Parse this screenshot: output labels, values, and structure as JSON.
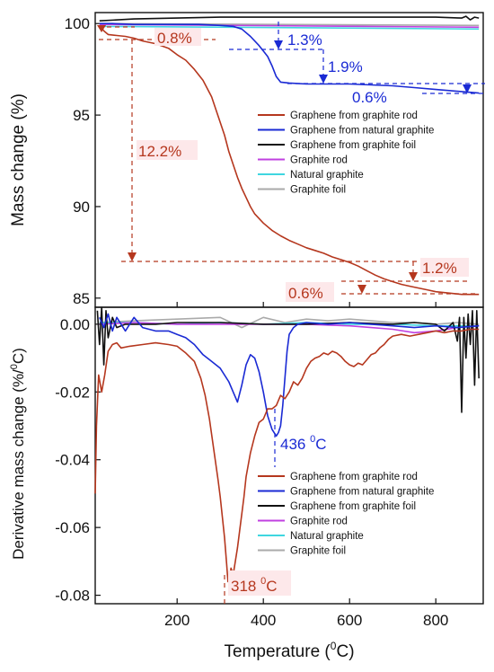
{
  "colors": {
    "graphene_rod": "#b5371e",
    "graphene_natural": "#1a2ad4",
    "graphene_foil": "#111111",
    "graphite_rod": "#c040e0",
    "natural_graphite": "#3fd6e0",
    "graphite_foil": "#aaaaaa",
    "axis": "#111111"
  },
  "chart_data": [
    {
      "type": "line",
      "panel": "top",
      "ylabel": "Mass change (%)",
      "xlim": [
        10,
        910
      ],
      "ylim": [
        84.5,
        100.6
      ],
      "yticks": [
        85,
        90,
        95,
        100
      ],
      "series": [
        {
          "name": "Graphene from graphite rod",
          "color": "#b5371e",
          "x": [
            20,
            30,
            40,
            60,
            80,
            100,
            120,
            150,
            180,
            200,
            220,
            240,
            260,
            280,
            290,
            300,
            310,
            320,
            330,
            340,
            350,
            360,
            370,
            380,
            400,
            420,
            440,
            460,
            480,
            500,
            520,
            540,
            560,
            580,
            600,
            620,
            640,
            660,
            680,
            700,
            720,
            740,
            760,
            780,
            800,
            820,
            840,
            860,
            880,
            900
          ],
          "y": [
            99.9,
            99.6,
            99.4,
            99.35,
            99.3,
            99.2,
            99.05,
            98.9,
            98.65,
            98.3,
            98.0,
            97.5,
            96.9,
            96.0,
            95.3,
            94.6,
            93.9,
            93.0,
            92.3,
            91.6,
            91.0,
            90.5,
            90.0,
            89.6,
            89.1,
            88.7,
            88.4,
            88.15,
            87.95,
            87.75,
            87.6,
            87.45,
            87.25,
            87.1,
            86.95,
            86.75,
            86.5,
            86.25,
            86.05,
            85.9,
            85.75,
            85.65,
            85.55,
            85.45,
            85.35,
            85.3,
            85.25,
            85.2,
            85.2,
            85.2
          ]
        },
        {
          "name": "Graphene from natural graphite",
          "color": "#1a2ad4",
          "x": [
            20,
            50,
            100,
            150,
            200,
            250,
            300,
            330,
            350,
            370,
            390,
            400,
            410,
            420,
            430,
            440,
            460,
            500,
            550,
            600,
            650,
            700,
            750,
            800,
            850,
            900
          ],
          "y": [
            100.0,
            100.0,
            99.95,
            99.95,
            99.95,
            99.95,
            99.9,
            99.85,
            99.7,
            99.3,
            98.8,
            98.5,
            98.2,
            97.7,
            97.1,
            96.8,
            96.75,
            96.7,
            96.7,
            96.7,
            96.65,
            96.6,
            96.5,
            96.4,
            96.3,
            96.2
          ]
        },
        {
          "name": "Graphene from graphite foil",
          "color": "#111111",
          "x": [
            20,
            100,
            200,
            300,
            400,
            500,
            600,
            700,
            800,
            860,
            870,
            880,
            890,
            900
          ],
          "y": [
            100.15,
            100.25,
            100.3,
            100.35,
            100.35,
            100.35,
            100.35,
            100.35,
            100.35,
            100.3,
            100.4,
            100.2,
            100.35,
            100.3
          ]
        },
        {
          "name": "Graphite rod",
          "color": "#c040e0",
          "x": [
            20,
            900
          ],
          "y": [
            99.95,
            99.8
          ]
        },
        {
          "name": "Natural graphite",
          "color": "#3fd6e0",
          "x": [
            20,
            900
          ],
          "y": [
            99.85,
            99.7
          ]
        },
        {
          "name": "Graphite foil",
          "color": "#aaaaaa",
          "x": [
            20,
            900
          ],
          "y": [
            100.0,
            99.9
          ]
        }
      ],
      "annotations": [
        {
          "text": "0.8%",
          "color": "#b5371e"
        },
        {
          "text": "1.3%",
          "color": "#1a2ad4"
        },
        {
          "text": "1.9%",
          "color": "#1a2ad4"
        },
        {
          "text": "0.6%",
          "color": "#1a2ad4"
        },
        {
          "text": "12.2%",
          "color": "#b5371e"
        },
        {
          "text": "1.2%",
          "color": "#b5371e"
        },
        {
          "text": "0.6%",
          "color": "#b5371e"
        }
      ]
    },
    {
      "type": "line",
      "panel": "bottom",
      "xlabel": "Temperature",
      "xlabel_unit_main": "C",
      "xlabel_unit_sup": "0",
      "ylabel": "Derivative mass change (%/",
      "ylabel_sup": "0",
      "ylabel_end": "C)",
      "xlim": [
        10,
        910
      ],
      "ylim": [
        -0.0825,
        0.005
      ],
      "xticks": [
        200,
        400,
        600,
        800
      ],
      "yticks": [
        0.0,
        -0.02,
        -0.04,
        -0.06,
        -0.08
      ],
      "ytick_labels": [
        "0.00",
        "-0.02",
        "-0.04",
        "-0.06",
        "-0.08"
      ],
      "series": [
        {
          "name": "Graphene from graphite rod",
          "color": "#b5371e",
          "x": [
            10,
            13,
            18,
            25,
            32,
            40,
            50,
            60,
            70,
            90,
            120,
            150,
            180,
            200,
            220,
            240,
            255,
            265,
            275,
            285,
            295,
            300,
            305,
            310,
            315,
            318,
            322,
            325,
            330,
            335,
            340,
            345,
            350,
            355,
            360,
            370,
            380,
            390,
            400,
            410,
            420,
            430,
            440,
            450,
            460,
            470,
            480,
            490,
            500,
            510,
            520,
            530,
            540,
            550,
            560,
            570,
            580,
            590,
            600,
            610,
            620,
            630,
            640,
            650,
            660,
            670,
            680,
            690,
            700,
            720,
            740,
            760,
            780,
            800,
            820,
            840,
            860,
            880,
            900
          ],
          "y": [
            -0.05,
            -0.03,
            -0.015,
            -0.02,
            -0.015,
            -0.008,
            -0.006,
            -0.0055,
            -0.007,
            -0.0065,
            -0.006,
            -0.0055,
            -0.006,
            -0.0065,
            -0.0085,
            -0.011,
            -0.016,
            -0.021,
            -0.028,
            -0.037,
            -0.046,
            -0.051,
            -0.057,
            -0.063,
            -0.071,
            -0.076,
            -0.075,
            -0.072,
            -0.074,
            -0.07,
            -0.066,
            -0.061,
            -0.056,
            -0.051,
            -0.045,
            -0.038,
            -0.033,
            -0.029,
            -0.028,
            -0.025,
            -0.025,
            -0.024,
            -0.021,
            -0.022,
            -0.02,
            -0.017,
            -0.018,
            -0.016,
            -0.013,
            -0.011,
            -0.01,
            -0.0095,
            -0.0085,
            -0.009,
            -0.008,
            -0.0085,
            -0.0095,
            -0.011,
            -0.012,
            -0.0125,
            -0.0115,
            -0.012,
            -0.0105,
            -0.009,
            -0.0085,
            -0.007,
            -0.006,
            -0.0045,
            -0.0035,
            -0.003,
            -0.0035,
            -0.003,
            -0.0025,
            -0.002,
            -0.0025,
            -0.002,
            -0.002,
            -0.0015,
            -0.0015
          ]
        },
        {
          "name": "Graphene from natural graphite",
          "color": "#1a2ad4",
          "x": [
            20,
            30,
            40,
            50,
            60,
            80,
            100,
            120,
            150,
            180,
            200,
            220,
            240,
            260,
            280,
            300,
            320,
            330,
            340,
            350,
            360,
            370,
            380,
            390,
            400,
            410,
            420,
            430,
            435,
            440,
            445,
            450,
            455,
            460,
            470,
            480,
            500,
            550,
            600,
            650,
            700,
            750,
            800,
            850,
            900
          ],
          "y": [
            0.002,
            -0.001,
            0.003,
            -0.002,
            0.002,
            -0.002,
            0.002,
            -0.001,
            -0.002,
            -0.002,
            -0.003,
            -0.004,
            -0.006,
            -0.009,
            -0.011,
            -0.013,
            -0.017,
            -0.02,
            -0.023,
            -0.018,
            -0.012,
            -0.009,
            -0.01,
            -0.014,
            -0.02,
            -0.027,
            -0.031,
            -0.033,
            -0.032,
            -0.03,
            -0.024,
            -0.016,
            -0.008,
            -0.003,
            -0.001,
            0.0,
            0.0005,
            0.0,
            0.0005,
            0.0,
            -0.0005,
            -0.001,
            -0.0005,
            -0.001,
            -0.0005
          ]
        },
        {
          "name": "Graphene from graphite foil",
          "color": "#111111",
          "x": [
            15,
            20,
            25,
            30,
            35,
            40,
            50,
            60,
            80,
            100,
            150,
            200,
            300,
            400,
            500,
            600,
            700,
            750,
            800,
            820,
            840,
            850,
            855,
            860,
            865,
            870,
            875,
            880,
            885,
            890,
            895,
            900
          ],
          "y": [
            0.004,
            -0.006,
            0.005,
            -0.012,
            0.004,
            -0.004,
            0.002,
            -0.001,
            0.0,
            0.0,
            0.0,
            0.0005,
            0.0005,
            0.0,
            0.0,
            0.0005,
            0.0,
            0.0005,
            0.0,
            -0.002,
            0.0005,
            -0.005,
            0.002,
            -0.026,
            0.002,
            -0.01,
            0.003,
            -0.006,
            0.004,
            -0.018,
            0.004,
            -0.016
          ]
        },
        {
          "name": "Graphite rod",
          "color": "#c040e0",
          "x": [
            20,
            100,
            200,
            300,
            400,
            500,
            600,
            650,
            700,
            750,
            800,
            850,
            900
          ],
          "y": [
            0.0,
            0.0005,
            0.0,
            0.0,
            0.0,
            0.0,
            -0.0005,
            -0.001,
            -0.0015,
            -0.0025,
            -0.002,
            -0.001,
            -0.0005
          ]
        },
        {
          "name": "Natural graphite",
          "color": "#3fd6e0",
          "x": [
            20,
            100,
            200,
            300,
            400,
            500,
            600,
            700,
            800,
            900
          ],
          "y": [
            0.0005,
            0.0005,
            0.0,
            0.0005,
            0.0,
            0.0005,
            0.0,
            0.0,
            -0.0005,
            -0.0005
          ]
        },
        {
          "name": "Graphite foil",
          "color": "#aaaaaa",
          "x": [
            20,
            100,
            200,
            300,
            350,
            400,
            450,
            500,
            550,
            600,
            650,
            700,
            750,
            800,
            850,
            900
          ],
          "y": [
            0.0005,
            0.001,
            0.0015,
            0.002,
            -0.001,
            0.002,
            0.0005,
            0.0015,
            0.001,
            0.0015,
            0.001,
            0.0005,
            0.0005,
            0.0,
            0.0005,
            0.0
          ]
        }
      ],
      "annotations": [
        {
          "text_main": "436 ",
          "sup": "0",
          "text_end": "C",
          "color": "#1a2ad4"
        },
        {
          "text_main": "318 ",
          "sup": "0",
          "text_end": "C",
          "color": "#b5371e"
        }
      ]
    }
  ]
}
